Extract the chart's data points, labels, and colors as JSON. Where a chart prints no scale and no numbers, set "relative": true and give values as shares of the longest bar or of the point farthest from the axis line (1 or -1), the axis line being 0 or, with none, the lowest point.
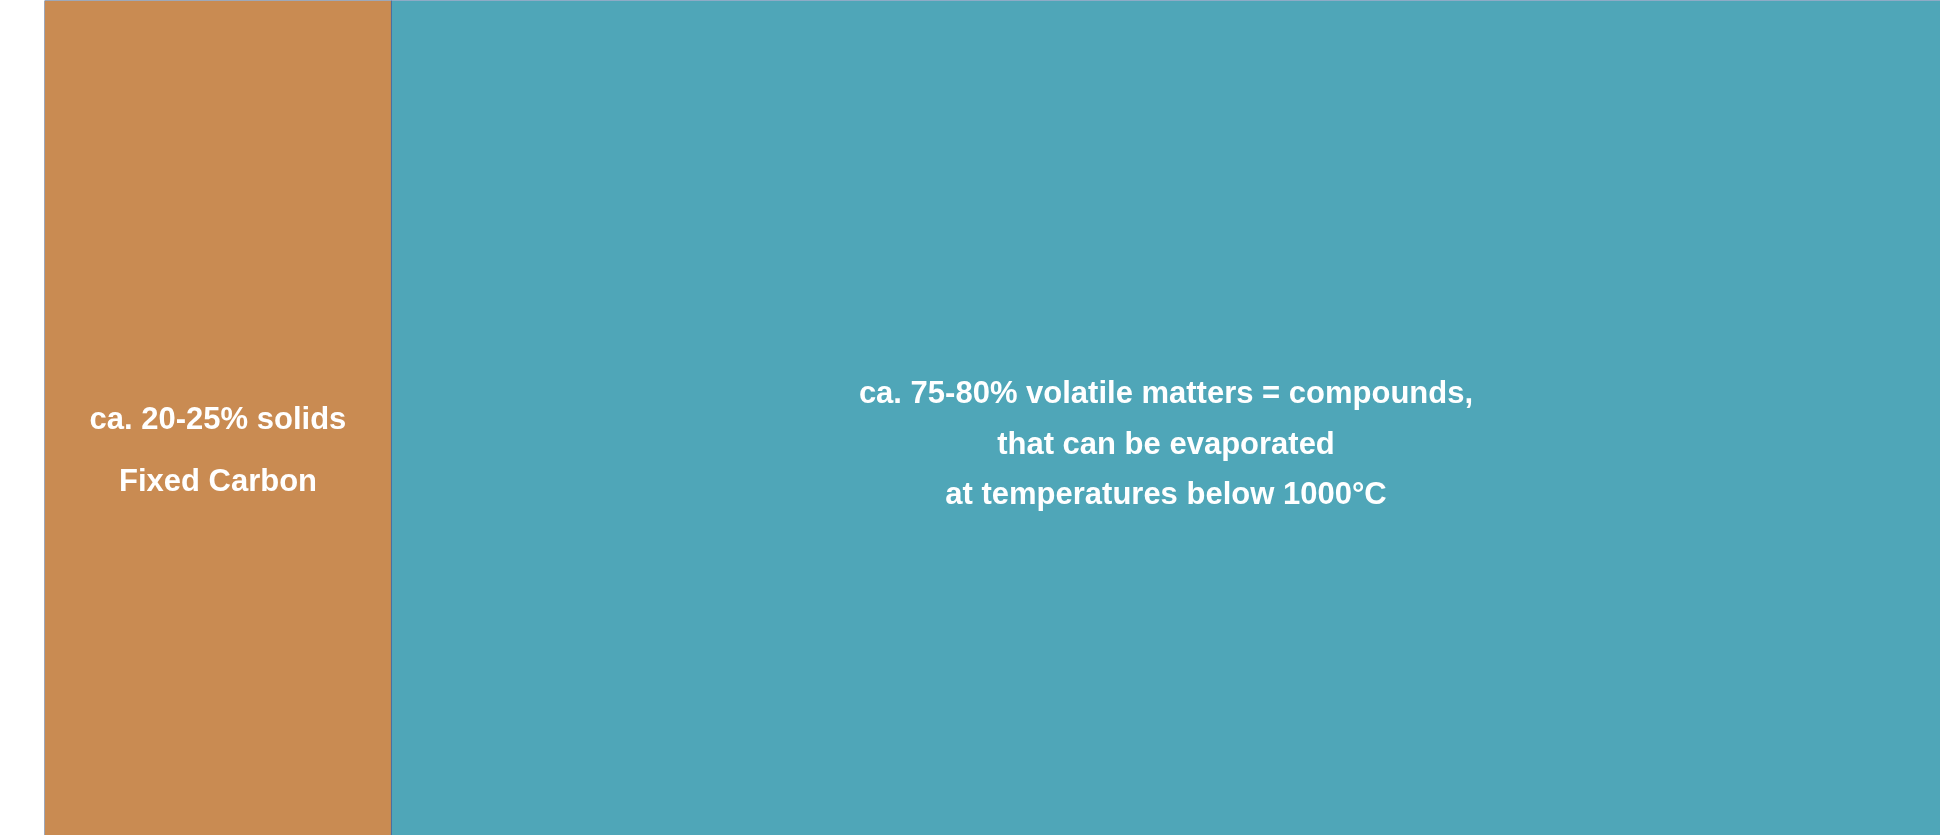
{
  "chart_data": {
    "type": "bar",
    "orientation": "horizontal",
    "stacked": true,
    "categories": [
      null
    ],
    "relative": true,
    "annotations": [
      "ca. 20-25% solids",
      "ca. 75-80% volatile matters = compounds,\nthat can be evaporated\nat temperatures below 1000°C"
    ],
    "series": [
      {
        "name": "Fixed Carbon",
        "color": "#c98b52",
        "values": [
          0.183
        ]
      },
      {
        "color": "#4fa6b8",
        "values": [
          0.817
        ]
      }
    ]
  }
}
